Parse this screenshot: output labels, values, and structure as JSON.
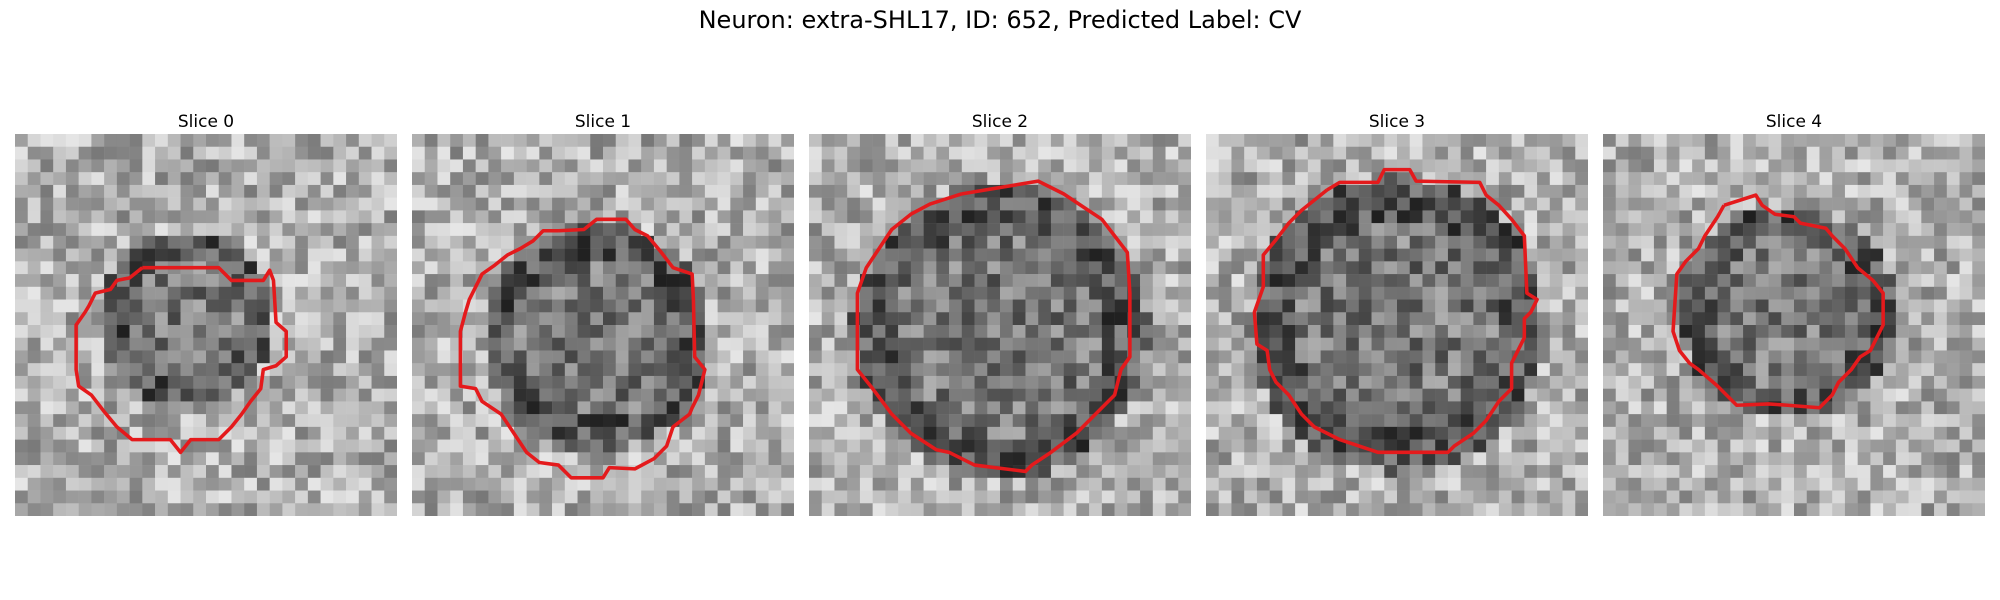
{
  "figure": {
    "title": "Neuron: extra-SHL17, ID: 652, Predicted Label: CV"
  },
  "slices": [
    {
      "title": "Slice 0"
    },
    {
      "title": "Slice 1"
    },
    {
      "title": "Slice 2"
    },
    {
      "title": "Slice 3"
    },
    {
      "title": "Slice 4"
    }
  ],
  "colors": {
    "contour": "#e41a1c",
    "background": "#ffffff"
  }
}
